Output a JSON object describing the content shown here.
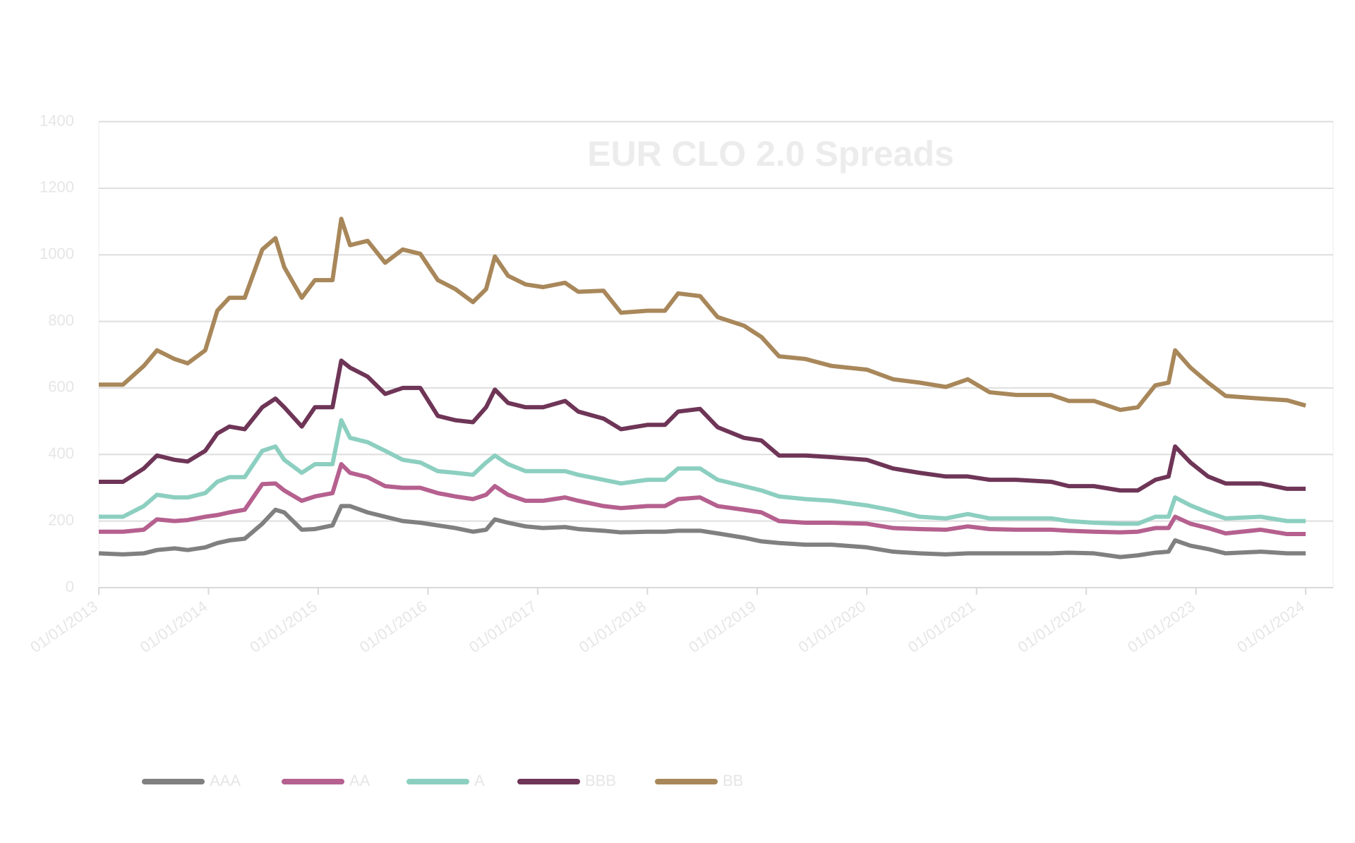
{
  "chart_data": {
    "type": "line",
    "title": "EUR CLO 2.0 Spreads",
    "x": [
      0,
      0.22,
      0.41,
      0.53,
      0.69,
      0.81,
      0.97,
      1.08,
      1.19,
      1.33,
      1.49,
      1.61,
      1.69,
      1.85,
      1.97,
      2.13,
      2.21,
      2.29,
      2.45,
      2.61,
      2.77,
      2.93,
      3.09,
      3.25,
      3.41,
      3.53,
      3.61,
      3.73,
      3.89,
      4.05,
      4.25,
      4.37,
      4.6,
      4.76,
      5.0,
      5.16,
      5.28,
      5.48,
      5.64,
      5.88,
      6.04,
      6.2,
      6.44,
      6.68,
      7.0,
      7.24,
      7.48,
      7.72,
      7.92,
      8.12,
      8.36,
      8.68,
      8.84,
      9.07,
      9.31,
      9.47,
      9.63,
      9.75,
      9.81,
      9.95,
      10.11,
      10.27,
      10.59,
      10.83,
      11.0
    ],
    "xlim": [
      0,
      11.25
    ],
    "xticks": [
      {
        "value": 0,
        "label": "01/01/2013"
      },
      {
        "value": 1,
        "label": "01/01/2014"
      },
      {
        "value": 2,
        "label": "01/01/2015"
      },
      {
        "value": 3,
        "label": "01/01/2016"
      },
      {
        "value": 4,
        "label": "01/01/2017"
      },
      {
        "value": 5,
        "label": "01/01/2018"
      },
      {
        "value": 6,
        "label": "01/01/2019"
      },
      {
        "value": 7,
        "label": "01/01/2020"
      },
      {
        "value": 8,
        "label": "01/01/2021"
      },
      {
        "value": 9,
        "label": "01/01/2022"
      },
      {
        "value": 10,
        "label": "01/01/2023"
      },
      {
        "value": 11,
        "label": "01/01/2024"
      }
    ],
    "ylim": [
      0,
      1400
    ],
    "yticks": [
      0,
      200,
      400,
      600,
      800,
      1000,
      1200,
      1400
    ],
    "grid": true,
    "legend": "bottom",
    "series": [
      {
        "name": "AAA",
        "color": "#808080",
        "values": [
          103,
          100,
          103,
          113,
          118,
          113,
          121,
          134,
          142,
          147,
          192,
          234,
          226,
          174,
          176,
          187,
          245,
          245,
          226,
          213,
          200,
          195,
          187,
          179,
          168,
          174,
          205,
          195,
          184,
          179,
          182,
          176,
          171,
          166,
          168,
          168,
          171,
          171,
          163,
          150,
          139,
          134,
          129,
          129,
          121,
          108,
          103,
          100,
          103,
          103,
          103,
          103,
          105,
          103,
          92,
          97,
          105,
          108,
          142,
          126,
          116,
          103,
          108,
          103,
          103
        ]
      },
      {
        "name": "AA",
        "color": "#b5608f",
        "values": [
          168,
          168,
          174,
          205,
          200,
          203,
          213,
          218,
          226,
          234,
          311,
          313,
          292,
          261,
          274,
          284,
          371,
          345,
          332,
          305,
          300,
          300,
          284,
          274,
          266,
          279,
          305,
          279,
          261,
          261,
          271,
          261,
          245,
          239,
          245,
          245,
          266,
          271,
          245,
          234,
          226,
          200,
          195,
          195,
          192,
          179,
          176,
          174,
          184,
          176,
          174,
          174,
          171,
          168,
          166,
          168,
          179,
          179,
          213,
          192,
          179,
          163,
          174,
          161,
          161
        ]
      },
      {
        "name": "A",
        "color": "#8ccfc0",
        "values": [
          213,
          213,
          245,
          279,
          271,
          271,
          284,
          318,
          332,
          332,
          411,
          424,
          384,
          345,
          371,
          371,
          503,
          450,
          437,
          411,
          384,
          376,
          350,
          345,
          339,
          376,
          397,
          371,
          350,
          350,
          350,
          339,
          324,
          313,
          324,
          324,
          358,
          358,
          324,
          305,
          292,
          274,
          266,
          261,
          247,
          232,
          213,
          208,
          221,
          208,
          208,
          208,
          200,
          195,
          192,
          192,
          213,
          213,
          271,
          247,
          226,
          208,
          213,
          200,
          200
        ]
      },
      {
        "name": "BBB",
        "color": "#6e3557",
        "values": [
          318,
          318,
          358,
          397,
          384,
          379,
          411,
          463,
          484,
          476,
          542,
          568,
          542,
          484,
          542,
          542,
          682,
          661,
          634,
          582,
          600,
          600,
          516,
          503,
          497,
          542,
          595,
          555,
          542,
          542,
          561,
          529,
          508,
          476,
          489,
          489,
          529,
          537,
          482,
          450,
          442,
          397,
          397,
          392,
          384,
          358,
          345,
          334,
          334,
          324,
          324,
          318,
          305,
          305,
          292,
          292,
          324,
          334,
          424,
          376,
          334,
          313,
          313,
          297,
          297
        ]
      },
      {
        "name": "BB",
        "color": "#a8875a",
        "values": [
          610,
          610,
          666,
          713,
          687,
          674,
          713,
          832,
          871,
          871,
          1016,
          1050,
          963,
          871,
          924,
          924,
          1108,
          1029,
          1042,
          976,
          1016,
          1003,
          924,
          897,
          858,
          897,
          995,
          937,
          911,
          903,
          916,
          889,
          892,
          826,
          832,
          832,
          884,
          876,
          813,
          787,
          753,
          695,
          687,
          666,
          655,
          626,
          616,
          603,
          626,
          587,
          579,
          579,
          561,
          561,
          534,
          542,
          608,
          616,
          713,
          661,
          616,
          576,
          568,
          563,
          547
        ]
      }
    ]
  }
}
